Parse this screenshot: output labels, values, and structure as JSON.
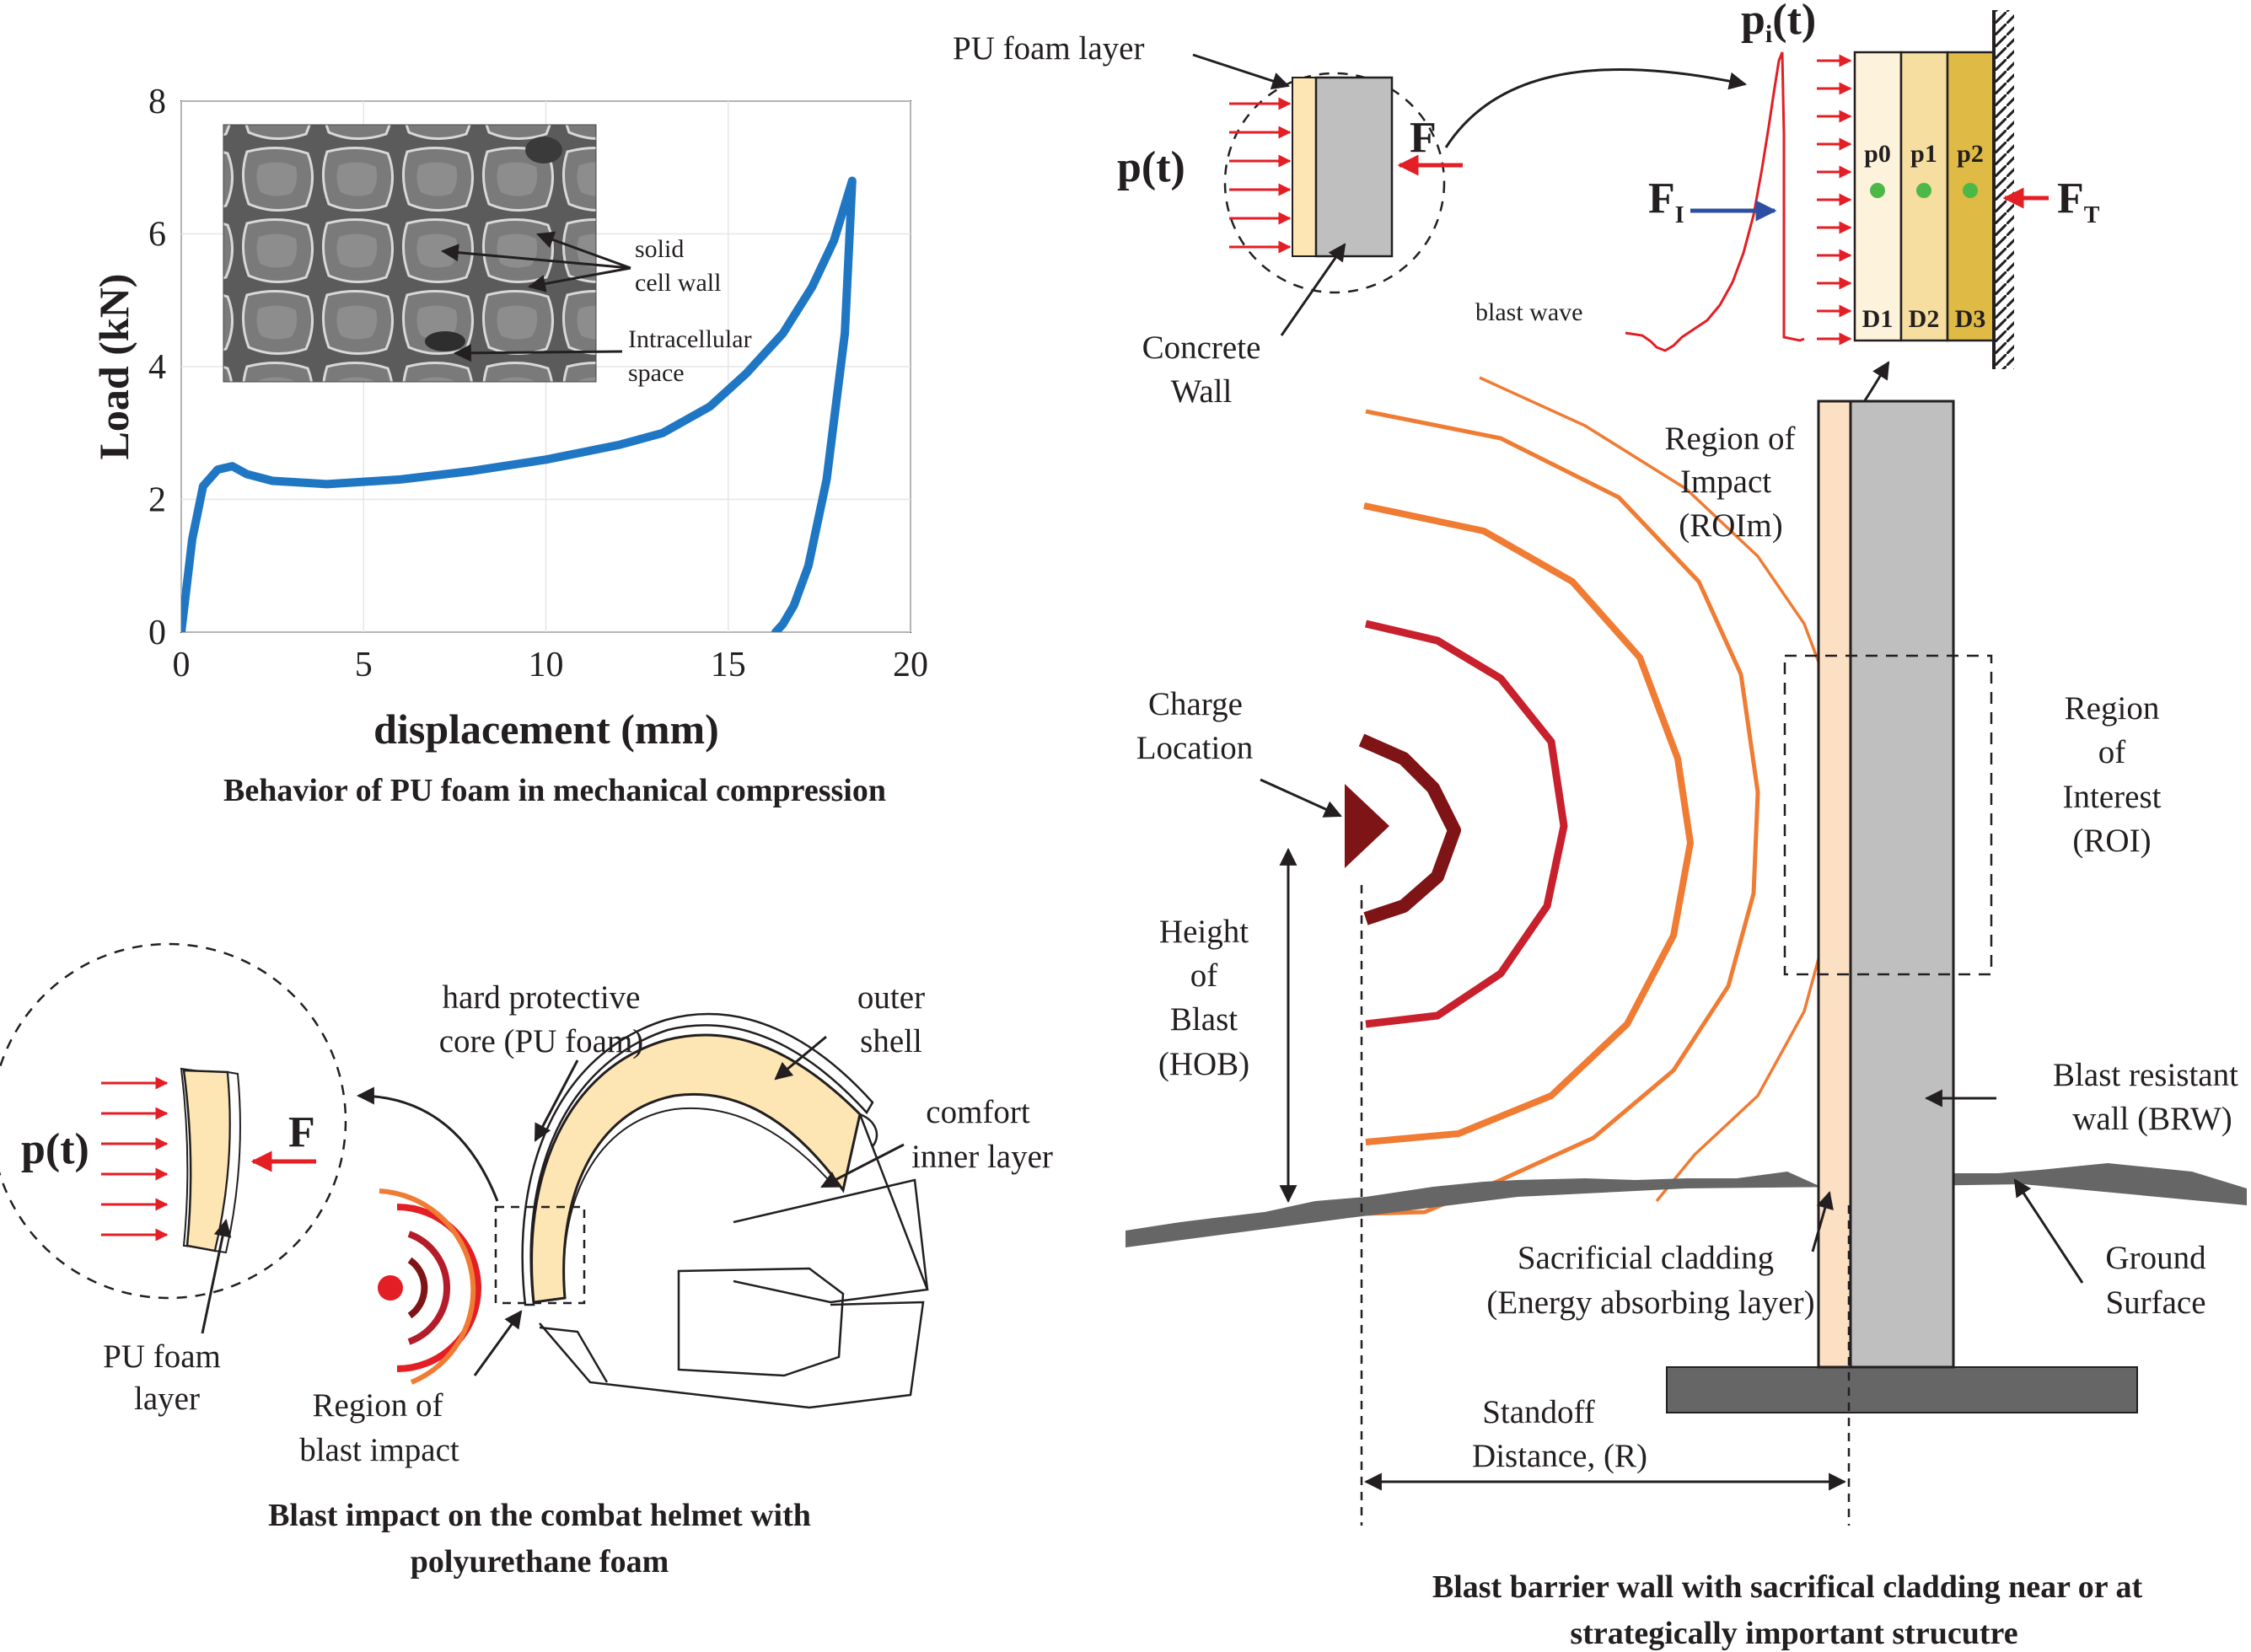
{
  "chart_data": {
    "type": "line",
    "xlabel": "displacement (mm)",
    "ylabel": "Load (kN)",
    "xlim": [
      0,
      20
    ],
    "ylim": [
      0,
      8
    ],
    "xticks": [
      "0",
      "5",
      "10",
      "15",
      "20"
    ],
    "yticks": [
      "0",
      "2",
      "4",
      "6",
      "8"
    ],
    "grid": true,
    "series": [
      {
        "color": "#1f77c4",
        "x": [
          0,
          0.3,
          0.6,
          1.0,
          1.4,
          1.8,
          2.5,
          4,
          6,
          8,
          10,
          12,
          13.2,
          14.5,
          15.5,
          16.5,
          17.3,
          17.9,
          18.4,
          18.2,
          17.7,
          17.2,
          16.8,
          16.5,
          16.3
        ],
        "y": [
          0,
          1.4,
          2.2,
          2.45,
          2.5,
          2.38,
          2.28,
          2.23,
          2.3,
          2.43,
          2.6,
          2.82,
          3.0,
          3.4,
          3.9,
          4.5,
          5.2,
          5.9,
          6.8,
          4.5,
          2.3,
          1.0,
          0.4,
          0.12,
          0
        ]
      }
    ]
  },
  "chart": {
    "caption": "Behavior of PU foam in mechanical compression",
    "inset": {
      "label_1a": "solid",
      "label_1b": "cell wall",
      "label_2a": "Intracellular",
      "label_2b": "space"
    }
  },
  "helmet": {
    "caption_1": "Blast impact on the  combat helmet with",
    "caption_2": "polyurethane foam",
    "pt": "p(t)",
    "force": "F",
    "foam_1": "PU foam",
    "foam_2": "layer",
    "hard_1": "hard protective",
    "hard_2": "core (PU foam)",
    "outer_1": "outer",
    "outer_2": "shell",
    "comfort_1": "comfort",
    "comfort_2": "inner layer",
    "region_1": "Region of",
    "region_2": "blast impact"
  },
  "wall": {
    "caption_1": "Blast barrier wall with sacrifical cladding near or at",
    "caption_2": "strategically important strucutre",
    "pu_foam_layer": "PU foam layer",
    "pt": "p(t)",
    "force": "F",
    "concrete_1": "Concrete",
    "concrete_2": "Wall",
    "pi_main": "p",
    "pi_sub": "i",
    "pi_end": "(t)",
    "fi_main": "F",
    "fi_sub": "I",
    "ft_main": "F",
    "ft_sub": "T",
    "blast_wave": "blast wave",
    "points": [
      "p0",
      "p1",
      "p2"
    ],
    "layers": [
      "D1",
      "D2",
      "D3"
    ],
    "roim_1": "Region of",
    "roim_2": "Impact",
    "roim_3": "(ROIm)",
    "charge_1": "Charge",
    "charge_2": "Location",
    "hob_1": "Height",
    "hob_2": "of",
    "hob_3": "Blast",
    "hob_4": "(HOB)",
    "roi_1": "Region",
    "roi_2": "of",
    "roi_3": "Interest",
    "roi_4": "(ROI)",
    "brw_1": "Blast resistant",
    "brw_2": "wall (BRW)",
    "clad_1": "Sacrificial cladding",
    "clad_2": "(Energy absorbing layer)",
    "ground_1": "Ground",
    "ground_2": "Surface",
    "standoff_1": "Standoff",
    "standoff_2": "Distance, (R)"
  },
  "colors": {
    "curve": "#1f77c4",
    "foam": "#fde6b3",
    "cladding": "#fbe0c4",
    "wall": "#bfbfbf",
    "ground": "#666666",
    "arrow_red": "#e31e24",
    "arrow_blue": "#2d4fa3",
    "wave_dark": "#7f1416",
    "wave_red": "#c8202c",
    "wave_orange": "#f07b33",
    "point_green": "#4cb848",
    "d1": "#fdf3dc",
    "d2": "#f5dea0",
    "d3": "#dfba45"
  }
}
